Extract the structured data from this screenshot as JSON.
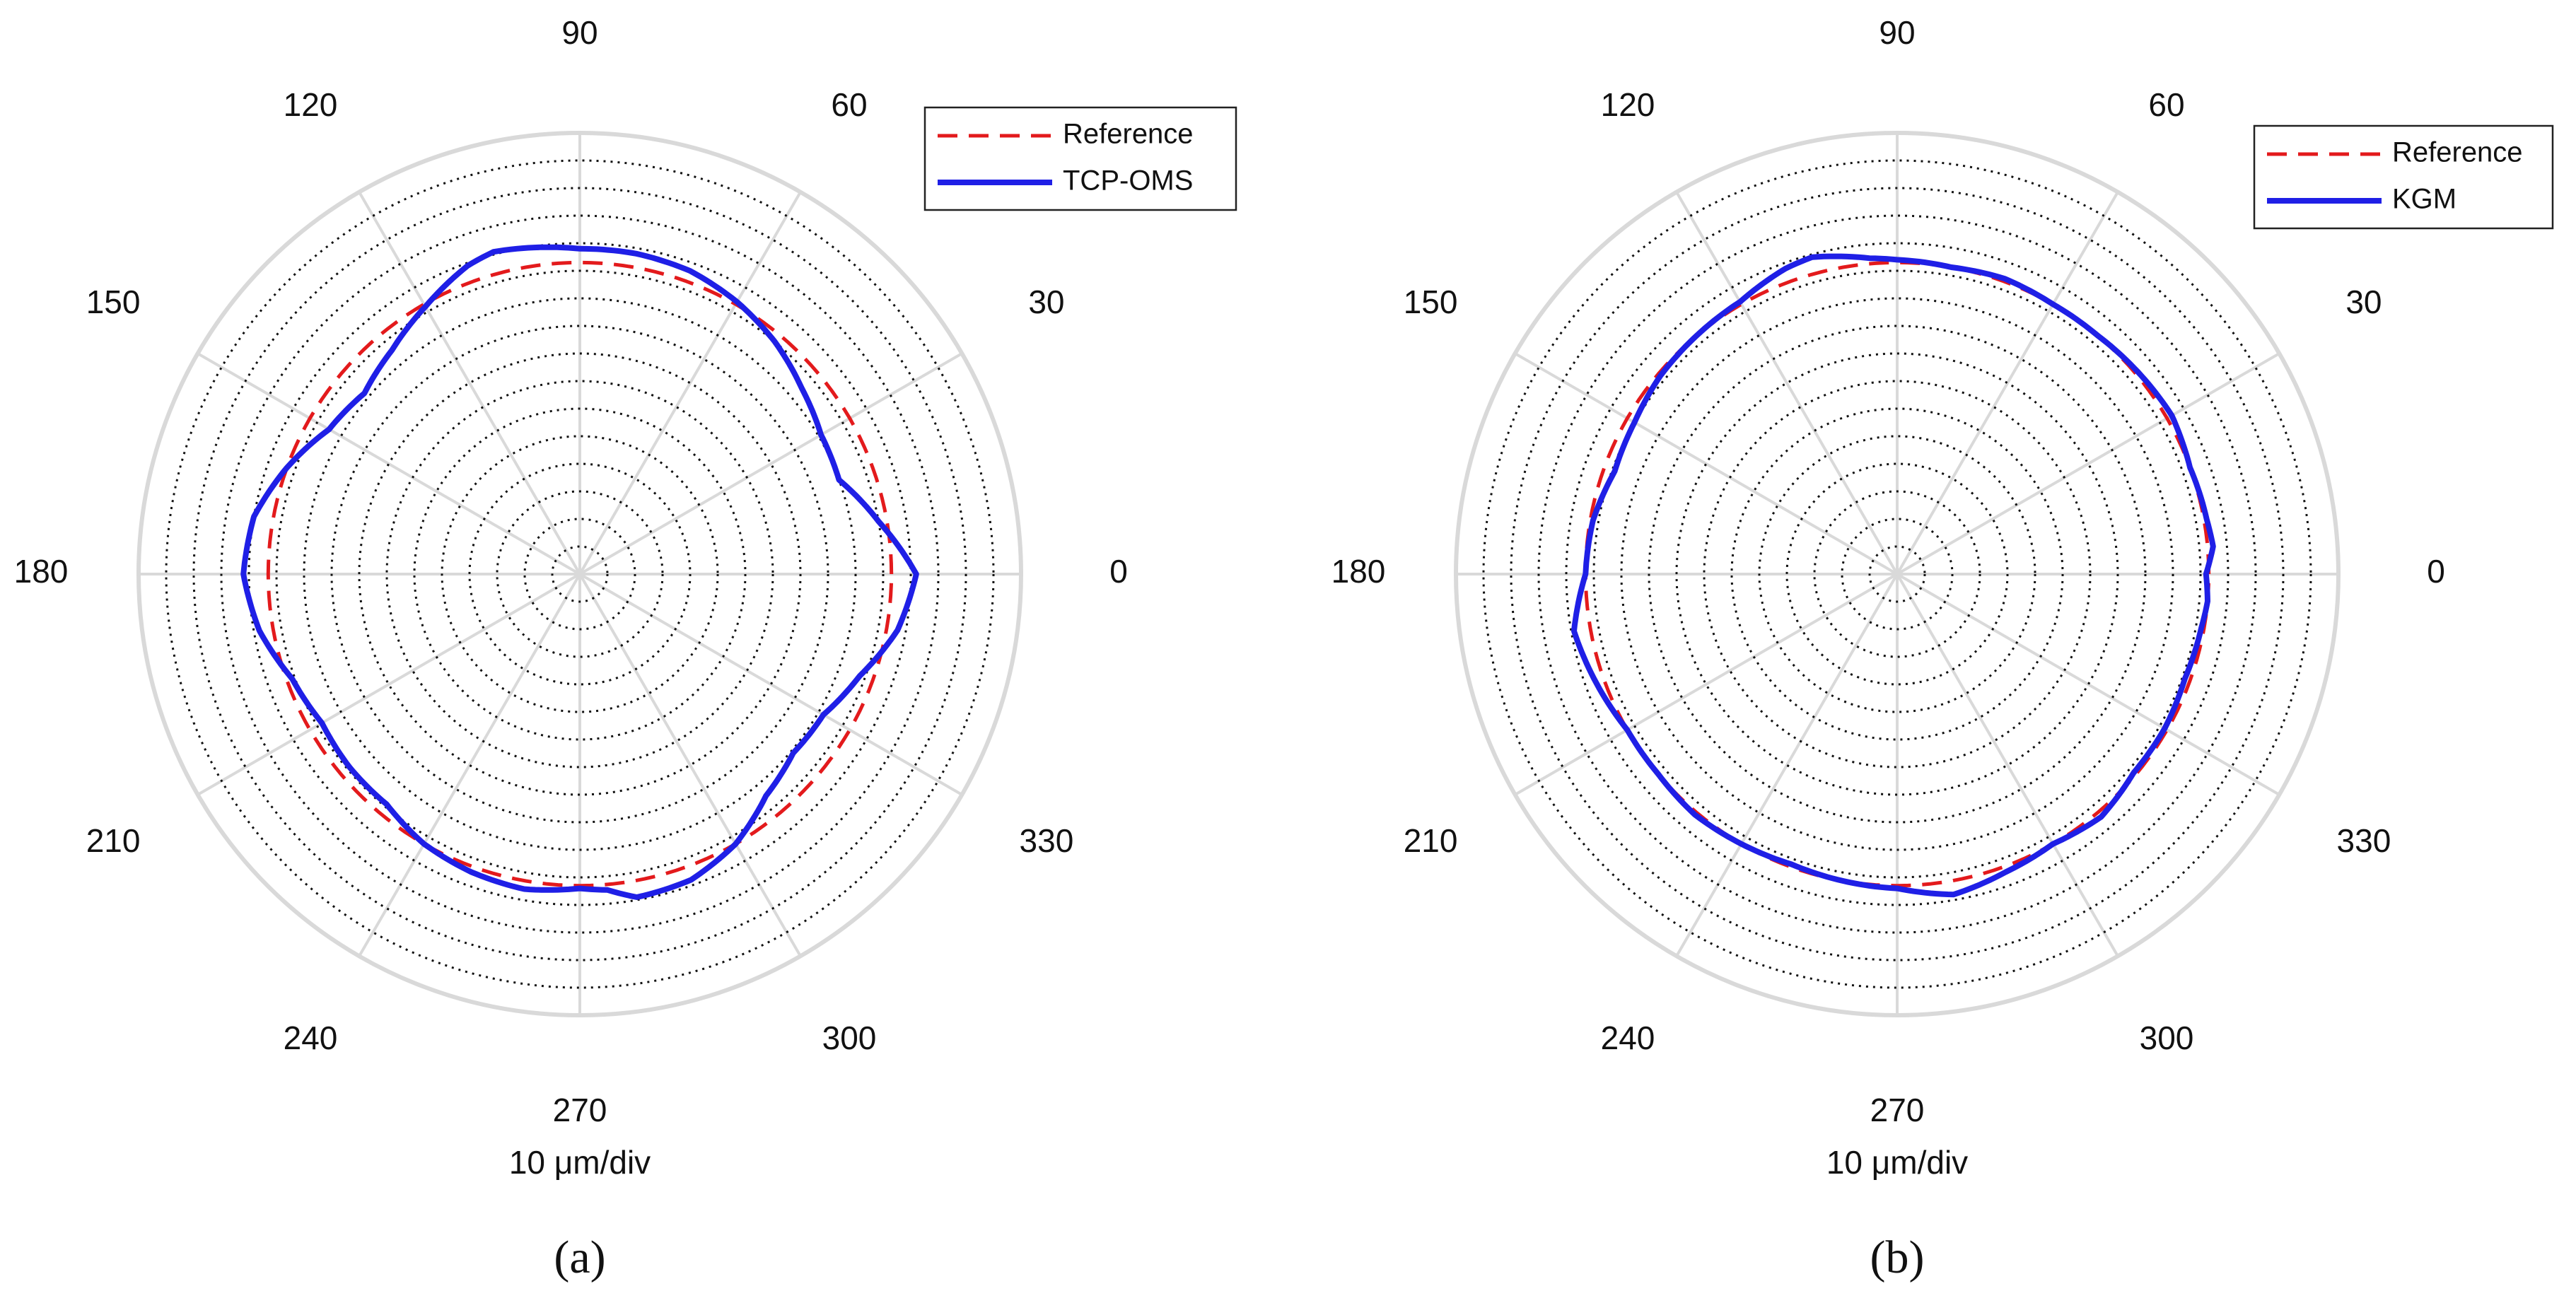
{
  "chart_data": [
    {
      "type": "polar-line",
      "panel_label": "(a)",
      "radial_unit_label": "10 μm/div",
      "angle_ticks": [
        "0",
        "30",
        "60",
        "90",
        "120",
        "150",
        "180",
        "210",
        "240",
        "270",
        "300",
        "330"
      ],
      "ring_count": 16,
      "legend": [
        "Reference",
        "TCP-OMS"
      ],
      "legend_position": "top-right",
      "series": [
        {
          "name": "Reference",
          "color": "#e31a1c",
          "style": "dashed",
          "angles_deg": [
            0,
            45,
            90,
            135,
            180,
            225,
            270,
            315,
            360
          ],
          "radius_div": [
            11.3,
            11.3,
            11.3,
            11.3,
            11.3,
            11.3,
            11.3,
            11.3,
            11.3
          ]
        },
        {
          "name": "TCP-OMS",
          "color": "#1f1fe6",
          "style": "solid",
          "angles_deg": [
            0,
            10,
            20,
            30,
            40,
            50,
            60,
            70,
            80,
            90,
            100,
            105,
            110,
            120,
            130,
            140,
            150,
            160,
            170,
            180,
            190,
            200,
            210,
            220,
            230,
            240,
            250,
            260,
            270,
            275,
            280,
            290,
            300,
            310,
            320,
            330,
            340,
            350,
            360
          ],
          "radius_div": [
            12.2,
            11.0,
            10.0,
            10.1,
            10.5,
            11.0,
            11.4,
            11.7,
            11.8,
            11.8,
            12.0,
            12.1,
            11.9,
            11.2,
            10.6,
            10.2,
            10.5,
            11.3,
            12.0,
            12.2,
            11.8,
            11.1,
            10.8,
            10.9,
            10.9,
            11.3,
            11.5,
            11.6,
            11.4,
            11.5,
            11.9,
            11.8,
            11.3,
            10.5,
            10.1,
            10.2,
            10.8,
            11.7,
            12.2
          ]
        }
      ]
    },
    {
      "type": "polar-line",
      "panel_label": "(b)",
      "radial_unit_label": "10 μm/div",
      "angle_ticks": [
        "0",
        "30",
        "60",
        "90",
        "120",
        "150",
        "180",
        "210",
        "240",
        "270",
        "300",
        "330"
      ],
      "ring_count": 16,
      "legend": [
        "Reference",
        "KGM"
      ],
      "legend_position": "top-right",
      "series": [
        {
          "name": "Reference",
          "color": "#e31a1c",
          "style": "dashed",
          "angles_deg": [
            0,
            45,
            90,
            135,
            180,
            225,
            270,
            315,
            360
          ],
          "radius_div": [
            11.3,
            11.3,
            11.3,
            11.3,
            11.3,
            11.3,
            11.3,
            11.3,
            11.3
          ]
        },
        {
          "name": "KGM",
          "color": "#1f1fe6",
          "style": "solid",
          "angles_deg": [
            0,
            5,
            10,
            20,
            30,
            40,
            50,
            60,
            70,
            80,
            90,
            95,
            100,
            105,
            110,
            120,
            130,
            140,
            150,
            160,
            170,
            180,
            185,
            190,
            200,
            210,
            220,
            230,
            240,
            250,
            260,
            270,
            280,
            290,
            300,
            310,
            320,
            330,
            340,
            350,
            355,
            360
          ],
          "radius_div": [
            11.2,
            11.5,
            11.4,
            11.3,
            11.5,
            11.4,
            11.3,
            11.3,
            11.4,
            11.3,
            11.4,
            11.5,
            11.7,
            11.9,
            11.8,
            11.4,
            11.3,
            11.2,
            11.0,
            10.9,
            11.2,
            11.3,
            11.6,
            11.9,
            11.6,
            11.3,
            11.3,
            11.4,
            11.3,
            11.2,
            11.3,
            11.4,
            11.8,
            11.5,
            11.3,
            11.5,
            11.2,
            11.2,
            11.1,
            11.2,
            11.3,
            11.2
          ]
        }
      ]
    }
  ]
}
